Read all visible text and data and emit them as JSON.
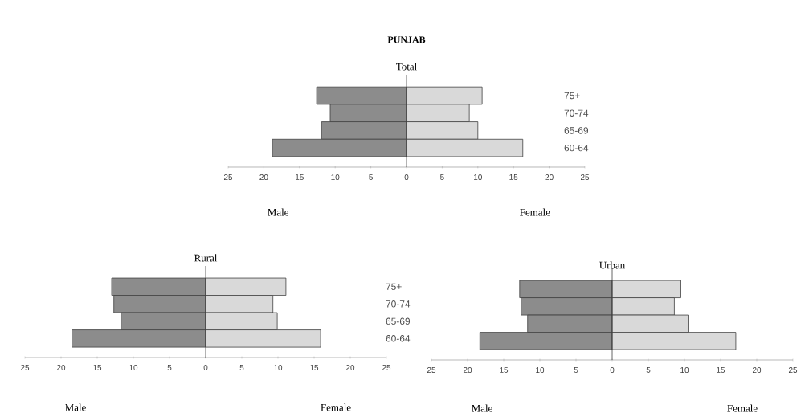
{
  "chart_data": [
    {
      "type": "bar",
      "orientation": "horizontal",
      "stacked": true,
      "title": "PUNJAB",
      "subtitle": "Total",
      "categories": [
        "75+",
        "70-74",
        "65-69",
        "60-64"
      ],
      "series": [
        {
          "name": "Male",
          "color": "#8c8c8c",
          "values": [
            -12.6,
            -10.7,
            -11.9,
            -18.8
          ]
        },
        {
          "name": "Female",
          "color": "#d9d9d9",
          "values": [
            10.6,
            8.8,
            10.0,
            16.3
          ]
        }
      ],
      "xlim": [
        -25,
        25
      ],
      "xticks": [
        {
          "value": -25,
          "label": "25"
        },
        {
          "value": -20,
          "label": "20"
        },
        {
          "value": -15,
          "label": "15"
        },
        {
          "value": -10,
          "label": "10"
        },
        {
          "value": -5,
          "label": "5"
        },
        0,
        5,
        10,
        15,
        20,
        25
      ]
    },
    {
      "type": "bar",
      "orientation": "horizontal",
      "stacked": true,
      "title": "Rural",
      "categories": [
        "75+",
        "70-74",
        "65-69",
        "60-64"
      ],
      "series": [
        {
          "name": "Male",
          "color": "#8c8c8c",
          "values": [
            -13.0,
            -12.7,
            -11.7,
            -18.5
          ]
        },
        {
          "name": "Female",
          "color": "#d9d9d9",
          "values": [
            11.1,
            9.3,
            9.9,
            15.9
          ]
        }
      ],
      "xlim": [
        -25,
        25
      ],
      "xticks": [
        {
          "value": -25,
          "label": "25"
        },
        {
          "value": -20,
          "label": "20"
        },
        {
          "value": -15,
          "label": "15"
        },
        {
          "value": -10,
          "label": "10"
        },
        {
          "value": -5,
          "label": "5"
        },
        0,
        5,
        10,
        15,
        20,
        25
      ]
    },
    {
      "type": "bar",
      "orientation": "horizontal",
      "stacked": true,
      "title": "Urban",
      "categories": [
        null,
        null,
        null,
        null
      ],
      "series": [
        {
          "name": "Male",
          "color": "#8c8c8c",
          "values": [
            -12.8,
            -12.6,
            -11.7,
            -18.3
          ]
        },
        {
          "name": "Female",
          "color": "#d9d9d9",
          "values": [
            9.5,
            8.6,
            10.5,
            17.1
          ]
        }
      ],
      "xlim": [
        -25,
        25
      ],
      "xticks": [
        {
          "value": -25,
          "label": "25"
        },
        {
          "value": -20,
          "label": "20"
        },
        {
          "value": -15,
          "label": "15"
        },
        {
          "value": -10,
          "label": "10"
        },
        {
          "value": -5,
          "label": "5"
        },
        0,
        5,
        10,
        15,
        20,
        25
      ]
    }
  ]
}
